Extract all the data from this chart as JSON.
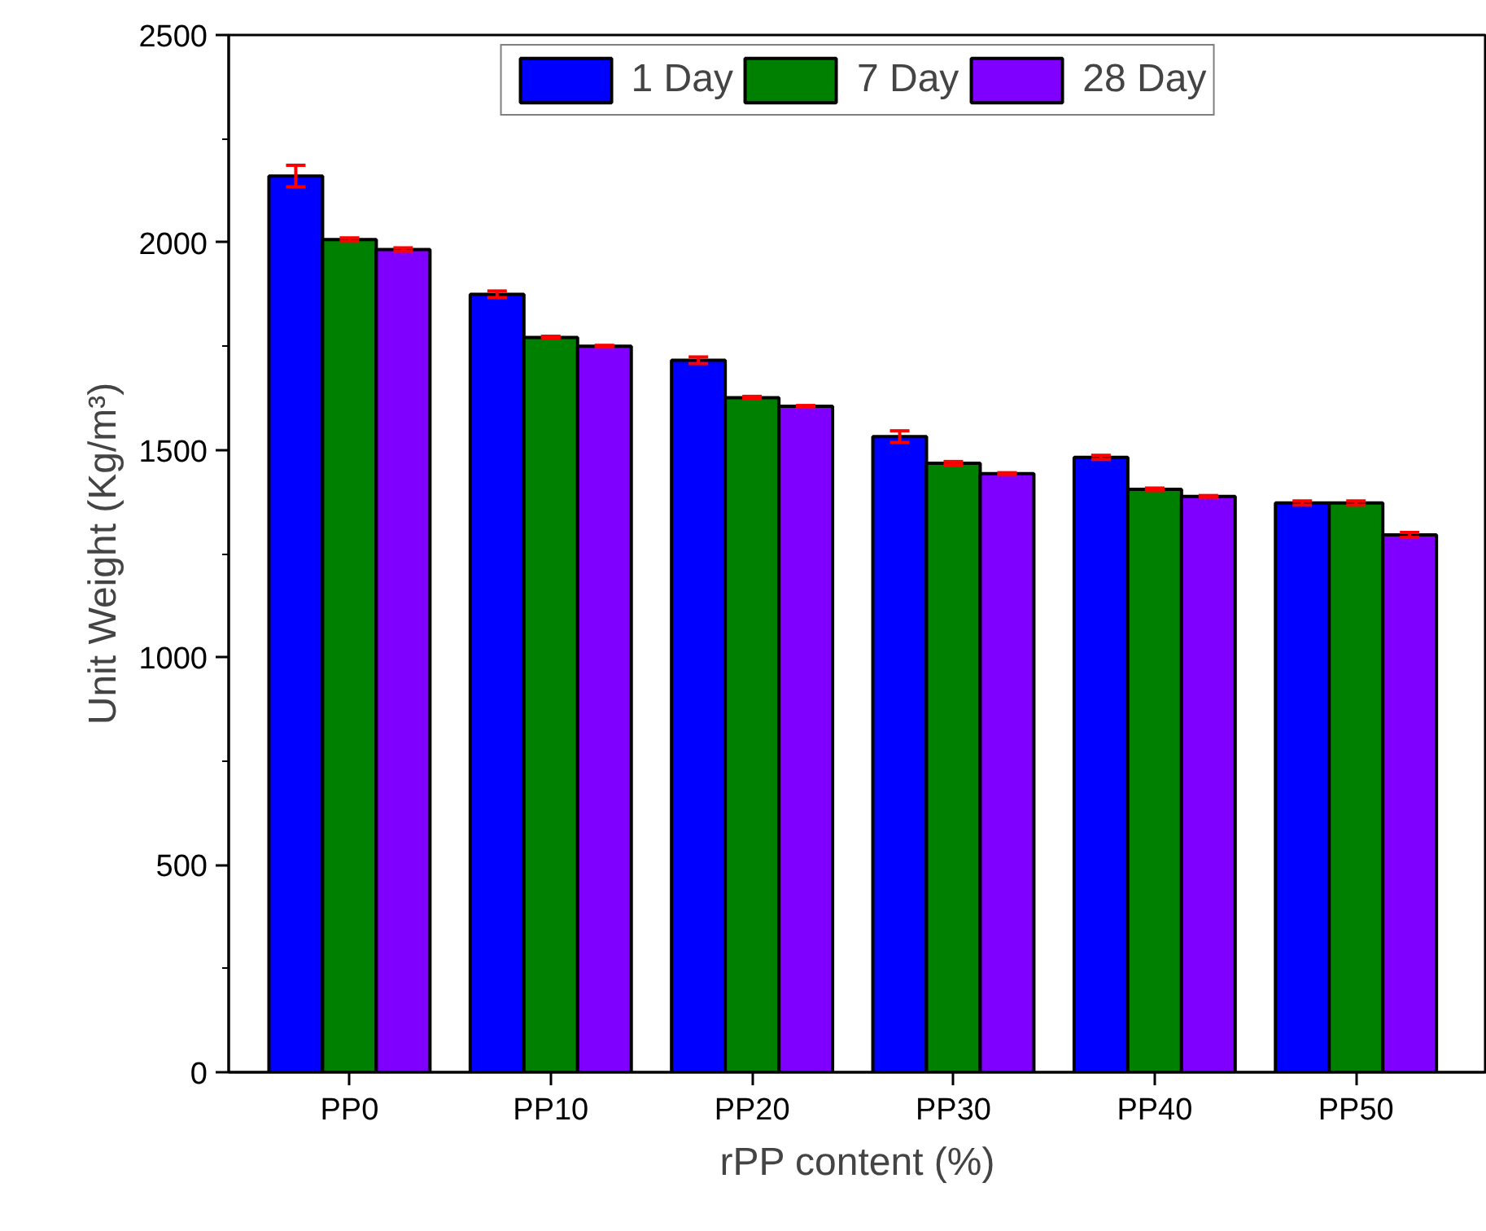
{
  "chart_data": {
    "type": "bar",
    "xlabel": "rPP content (%)",
    "ylabel": "Unit Weight (Kg/m³)",
    "categories": [
      "PP0",
      "PP10",
      "PP20",
      "PP30",
      "PP40",
      "PP50"
    ],
    "series": [
      {
        "name": "1 Day",
        "color": "#0000ff",
        "values": [
          2160,
          1875,
          1716,
          1532,
          1482,
          1372
        ],
        "errors": [
          26,
          8,
          8,
          14,
          5,
          5
        ]
      },
      {
        "name": "7 Day",
        "color": "#008000",
        "values": [
          2007,
          1771,
          1626,
          1468,
          1405,
          1372
        ],
        "errors": [
          4,
          3,
          3,
          4,
          3,
          5
        ]
      },
      {
        "name": "28 Day",
        "color": "#8000ff",
        "values": [
          1983,
          1750,
          1605,
          1443,
          1388,
          1295
        ],
        "errors": [
          4,
          2,
          2,
          2,
          2,
          6
        ]
      }
    ],
    "ylim": [
      0,
      2500
    ],
    "yticks": [
      0,
      500,
      1000,
      1500,
      2000,
      2500
    ],
    "grid": false,
    "legend": "top"
  }
}
